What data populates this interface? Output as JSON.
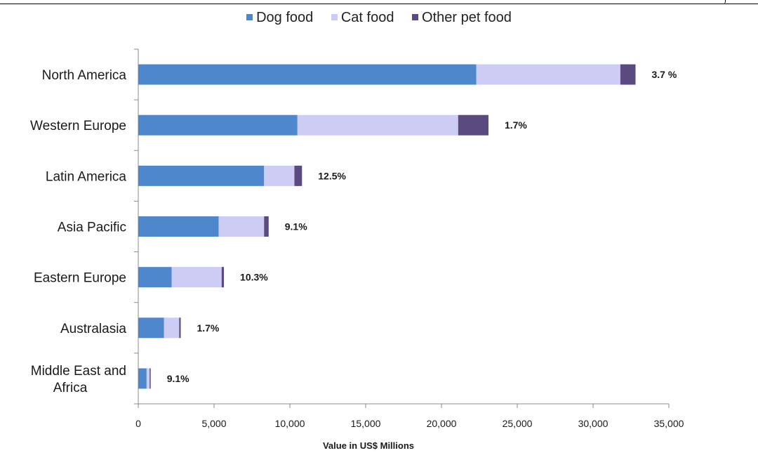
{
  "chart_data": {
    "type": "bar",
    "orientation": "horizontal",
    "stacked": true,
    "categories": [
      "North America",
      "Western Europe",
      "Latin America",
      "Asia Pacific",
      "Eastern Europe",
      "Australasia",
      "Middle East and Africa"
    ],
    "series": [
      {
        "name": "Dog food",
        "color": "#4f87cc",
        "values": [
          22300,
          10500,
          8300,
          5300,
          2200,
          1700,
          550
        ]
      },
      {
        "name": "Cat food",
        "color": "#ccccf5",
        "values": [
          9500,
          10600,
          2000,
          3000,
          3300,
          1000,
          200
        ]
      },
      {
        "name": "Other pet food",
        "color": "#5b4a7f",
        "values": [
          1000,
          2000,
          500,
          300,
          150,
          100,
          70
        ]
      }
    ],
    "growth_labels": [
      "3.7 %",
      "1.7%",
      "12.5%",
      "9.1%",
      "10.3%",
      "1.7%",
      "9.1%"
    ],
    "xlabel": "Value in US$ Millions",
    "ylabel": "",
    "xlim": [
      0,
      35000
    ],
    "x_ticks": [
      "0",
      "5,000",
      "10,000",
      "15,000",
      "20,000",
      "25,000",
      "30,000",
      "35,000"
    ],
    "grid": false,
    "legend_position": "top"
  }
}
